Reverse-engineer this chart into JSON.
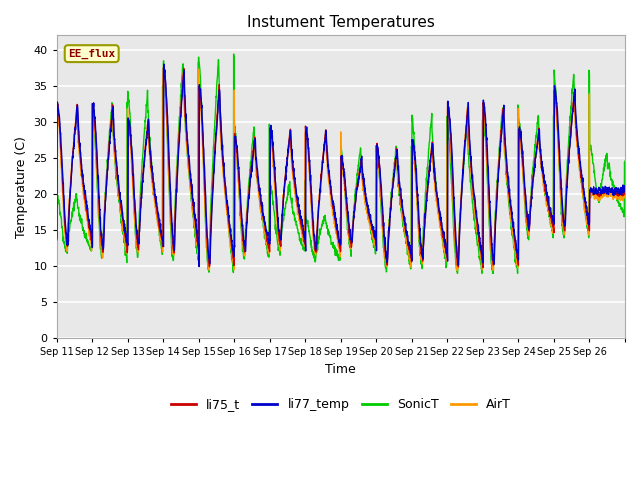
{
  "title": "Instument Temperatures",
  "xlabel": "Time",
  "ylabel": "Temperature (C)",
  "ylim": [
    0,
    42
  ],
  "yticks": [
    0,
    5,
    10,
    15,
    20,
    25,
    30,
    35,
    40
  ],
  "series_labels": [
    "li75_t",
    "li77_temp",
    "SonicT",
    "AirT"
  ],
  "series_colors": [
    "#cc0000",
    "#0000cc",
    "#00cc00",
    "#ff9900"
  ],
  "annotation_text": "EE_flux",
  "fig_bg_color": "#ffffff",
  "plot_bg_color": "#e8e8e8",
  "grid_color": "#ffffff",
  "xtick_labels": [
    "Sep 11",
    "Sep 12",
    "Sep 13",
    "Sep 14",
    "Sep 15",
    "Sep 16",
    "Sep 17",
    "Sep 18",
    "Sep 19",
    "Sep 20",
    "Sep 21",
    "Sep 22",
    "Sep 23",
    "Sep 24",
    "Sep 25",
    "Sep 26"
  ],
  "n_days": 16
}
